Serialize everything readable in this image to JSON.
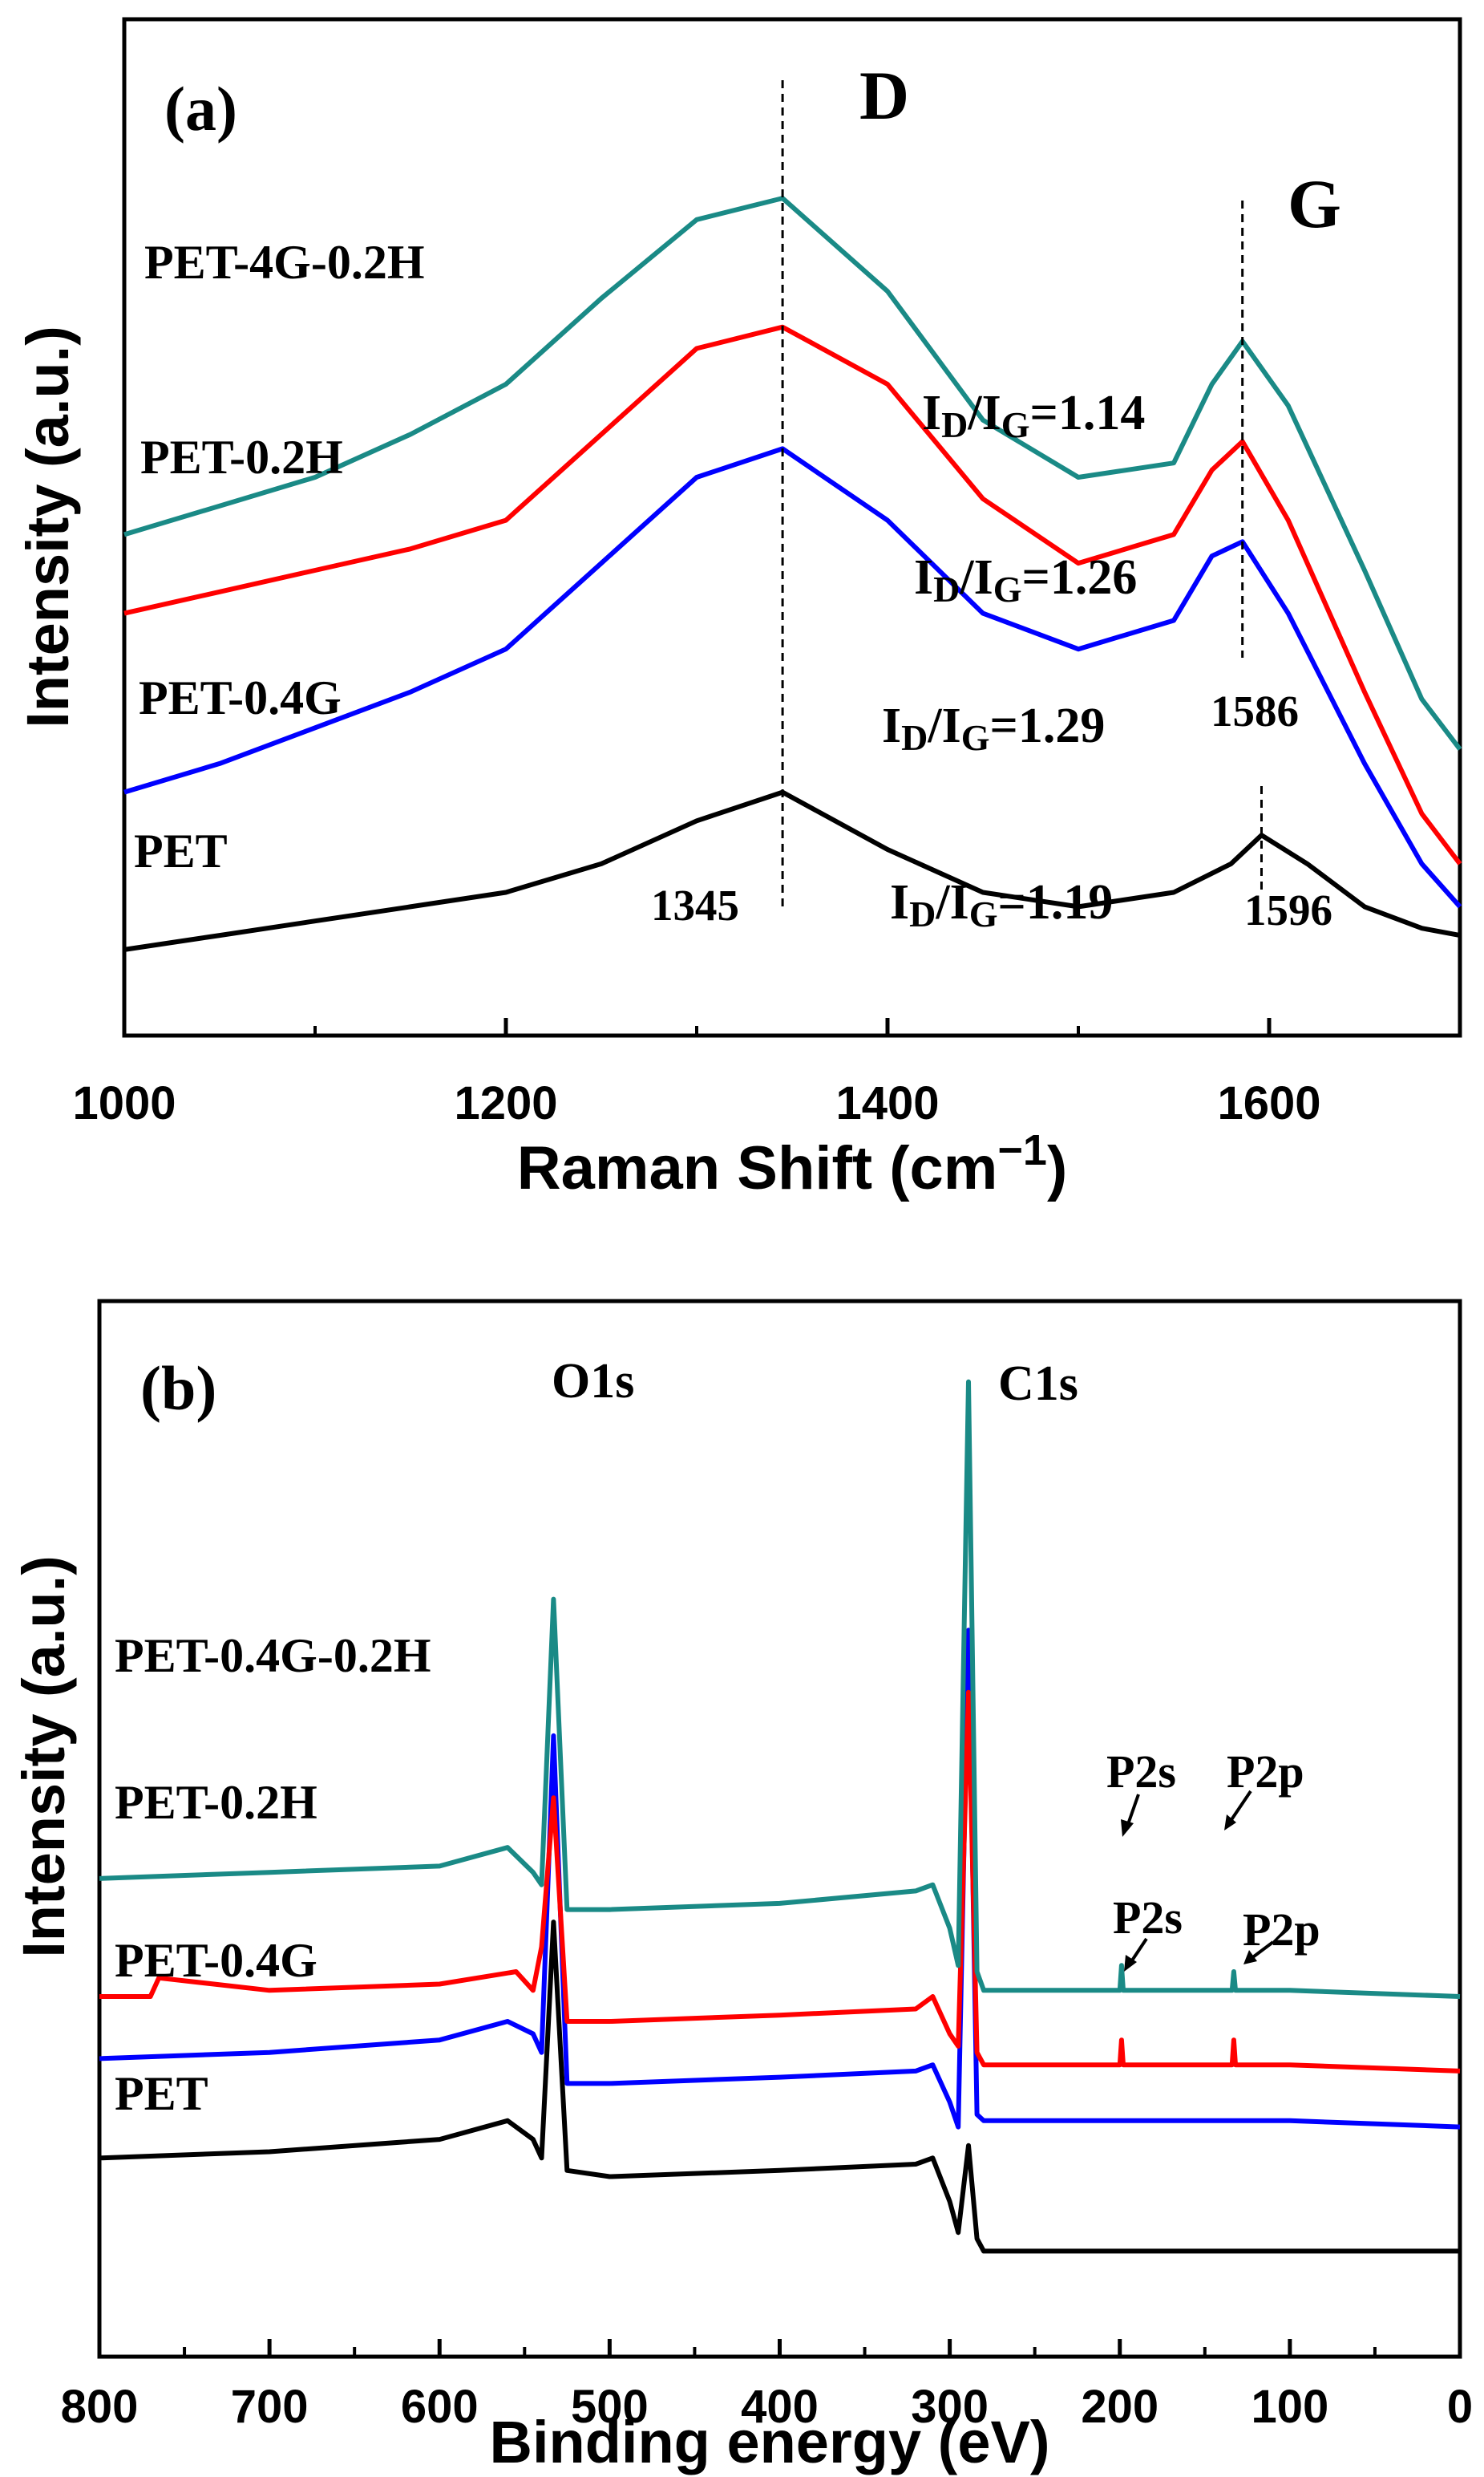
{
  "colors": {
    "PET": "#000000",
    "PET-0.4G": "#0000ff",
    "PET-0.2H": "#ff0000",
    "PET-4G-0.2H": "#1a8a86",
    "PET-0.4G-0.2H": "#1a8a86"
  },
  "chart_data": [
    {
      "type": "line",
      "panel": "(a)",
      "xlabel": "Raman Shift (cm",
      "xlabel_sup": "−1",
      "xlabel_close": ")",
      "ylabel": "Intensity (a.u.)",
      "xlim": [
        1000,
        1700
      ],
      "xticks": [
        1000,
        1200,
        1400,
        1600
      ],
      "grid": false,
      "series": [
        {
          "name": "PET",
          "label": "PET",
          "x": [
            1000,
            1050,
            1100,
            1150,
            1200,
            1250,
            1300,
            1345,
            1400,
            1450,
            1500,
            1550,
            1580,
            1596,
            1620,
            1650,
            1680,
            1700
          ],
          "y": [
            0.0,
            0.02,
            0.04,
            0.06,
            0.08,
            0.12,
            0.18,
            0.22,
            0.14,
            0.08,
            0.06,
            0.08,
            0.12,
            0.16,
            0.12,
            0.06,
            0.03,
            0.02
          ]
        },
        {
          "name": "PET-0.4G",
          "label": "PET-0.4G",
          "x": [
            1000,
            1050,
            1100,
            1150,
            1200,
            1250,
            1300,
            1345,
            1400,
            1450,
            1500,
            1550,
            1570,
            1586,
            1610,
            1650,
            1680,
            1700
          ],
          "y": [
            0.22,
            0.26,
            0.31,
            0.36,
            0.42,
            0.54,
            0.66,
            0.7,
            0.6,
            0.47,
            0.42,
            0.46,
            0.55,
            0.57,
            0.47,
            0.26,
            0.12,
            0.06
          ]
        },
        {
          "name": "PET-0.2H",
          "label": "PET-0.2H",
          "x": [
            1000,
            1050,
            1100,
            1150,
            1200,
            1250,
            1300,
            1345,
            1400,
            1450,
            1500,
            1550,
            1570,
            1586,
            1610,
            1650,
            1680,
            1700
          ],
          "y": [
            0.47,
            0.5,
            0.53,
            0.56,
            0.6,
            0.72,
            0.84,
            0.87,
            0.79,
            0.63,
            0.54,
            0.58,
            0.67,
            0.71,
            0.6,
            0.36,
            0.19,
            0.12
          ]
        },
        {
          "name": "PET-4G-0.2H",
          "label": "PET-4G-0.2H",
          "x": [
            1000,
            1050,
            1100,
            1150,
            1200,
            1250,
            1300,
            1345,
            1400,
            1450,
            1500,
            1550,
            1570,
            1586,
            1610,
            1650,
            1680,
            1700
          ],
          "y": [
            0.58,
            0.62,
            0.66,
            0.72,
            0.79,
            0.91,
            1.02,
            1.05,
            0.92,
            0.74,
            0.66,
            0.68,
            0.79,
            0.85,
            0.76,
            0.53,
            0.35,
            0.28
          ]
        }
      ],
      "peak_positions": {
        "D_line": 1345,
        "G_line": 1586,
        "G_line_pet": 1596
      },
      "annotations": {
        "panel_label": "(a)",
        "D": "D",
        "G": "G",
        "d_pos": "1345",
        "g_pos_modified": "1586",
        "g_pos_pet": "1596",
        "ratios": [
          {
            "series": "PET-4G-0.2H",
            "prefix": "I",
            "sub1": "D",
            "slash": "/I",
            "sub2": "G",
            "value": "=1.14"
          },
          {
            "series": "PET-0.2H",
            "prefix": "I",
            "sub1": "D",
            "slash": "/I",
            "sub2": "G",
            "value": "=1.26"
          },
          {
            "series": "PET-0.4G",
            "prefix": "I",
            "sub1": "D",
            "slash": "/I",
            "sub2": "G",
            "value": "=1.29"
          },
          {
            "series": "PET",
            "prefix": "I",
            "sub1": "D",
            "slash": "/I",
            "sub2": "G",
            "value": "=1.19"
          }
        ]
      }
    },
    {
      "type": "line",
      "panel": "(b)",
      "xlabel": "Binding energy (eV)",
      "ylabel": "Intensity (a.u.)",
      "xlim": [
        800,
        0
      ],
      "xticks": [
        800,
        700,
        600,
        500,
        400,
        300,
        200,
        100,
        0
      ],
      "grid": false,
      "series": [
        {
          "name": "PET",
          "label": "PET",
          "x": [
            800,
            700,
            600,
            560,
            545,
            540,
            533,
            525,
            500,
            400,
            320,
            310,
            300,
            295,
            289,
            284,
            280,
            200,
            150,
            100,
            0
          ],
          "y": [
            0.1,
            0.11,
            0.13,
            0.16,
            0.13,
            0.1,
            0.48,
            0.08,
            0.07,
            0.08,
            0.09,
            0.1,
            0.03,
            -0.02,
            0.12,
            -0.03,
            -0.05,
            -0.05,
            -0.05,
            -0.05,
            -0.05
          ]
        },
        {
          "name": "PET-0.4G",
          "label": "PET-0.4G",
          "x": [
            800,
            700,
            600,
            560,
            545,
            540,
            533,
            525,
            500,
            400,
            320,
            310,
            300,
            295,
            289,
            284,
            280,
            200,
            150,
            100,
            0
          ],
          "y": [
            0.26,
            0.27,
            0.29,
            0.32,
            0.3,
            0.27,
            0.78,
            0.22,
            0.22,
            0.23,
            0.24,
            0.25,
            0.19,
            0.15,
            0.95,
            0.17,
            0.16,
            0.16,
            0.16,
            0.16,
            0.15
          ]
        },
        {
          "name": "PET-0.2H",
          "label": "PET-0.2H",
          "x": [
            800,
            770,
            765,
            700,
            600,
            555,
            545,
            540,
            533,
            525,
            500,
            400,
            320,
            310,
            300,
            295,
            289,
            284,
            280,
            200,
            199,
            198,
            150,
            134,
            133,
            132,
            100,
            0
          ],
          "y": [
            0.36,
            0.36,
            0.39,
            0.37,
            0.38,
            0.4,
            0.37,
            0.44,
            0.68,
            0.32,
            0.32,
            0.33,
            0.34,
            0.36,
            0.3,
            0.28,
            0.85,
            0.27,
            0.25,
            0.25,
            0.29,
            0.25,
            0.25,
            0.25,
            0.29,
            0.25,
            0.25,
            0.24
          ]
        },
        {
          "name": "PET-0.4G-0.2H",
          "label": "PET-0.4G-0.2H",
          "x": [
            800,
            700,
            600,
            560,
            545,
            540,
            533,
            525,
            500,
            400,
            320,
            310,
            300,
            295,
            289,
            284,
            280,
            200,
            199,
            198,
            150,
            134,
            133,
            132,
            100,
            0
          ],
          "y": [
            0.55,
            0.56,
            0.57,
            0.6,
            0.56,
            0.54,
            1.0,
            0.5,
            0.5,
            0.51,
            0.53,
            0.54,
            0.47,
            0.41,
            1.35,
            0.4,
            0.37,
            0.37,
            0.41,
            0.37,
            0.37,
            0.37,
            0.4,
            0.37,
            0.37,
            0.36
          ]
        }
      ],
      "annotations": {
        "panel_label": "(b)",
        "o1s": "O1s",
        "c1s": "C1s",
        "p2s_1": "P2s",
        "p2p_1": "P2p",
        "p2s_2": "P2s",
        "p2p_2": "P2p"
      }
    }
  ]
}
